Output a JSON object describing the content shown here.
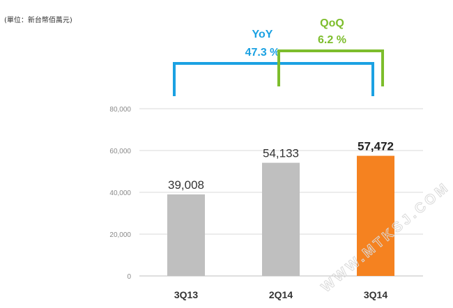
{
  "unit_note": "(單位：新台幣佰萬元)",
  "watermark": "WWW.MTKSJ.COM",
  "colors": {
    "bar": "#bfbfbf",
    "highlight": "#f58220",
    "yoy": "#1ba1e2",
    "qoq": "#7dbd2c",
    "grid": "#d9d9d9"
  },
  "annotations": {
    "yoy": {
      "label": "YoY",
      "value": "47.3 %",
      "from": "3Q13",
      "to": "3Q14"
    },
    "qoq": {
      "label": "QoQ",
      "value": "6.2 %",
      "from": "2Q14",
      "to": "3Q14"
    }
  },
  "chart_data": {
    "type": "bar",
    "categories": [
      "3Q13",
      "2Q14",
      "3Q14"
    ],
    "values": [
      39008,
      54133,
      57472
    ],
    "value_labels": [
      "39,008",
      "54,133",
      "57,472"
    ],
    "highlight_index": 2,
    "title": "",
    "xlabel": "",
    "ylabel": "",
    "ylim": [
      0,
      80000
    ],
    "yticks": [
      0,
      20000,
      40000,
      60000,
      80000
    ],
    "ytick_labels": [
      "0",
      "20,000",
      "40,000",
      "60,000",
      "80,000"
    ],
    "grid": true,
    "legend": "none"
  }
}
